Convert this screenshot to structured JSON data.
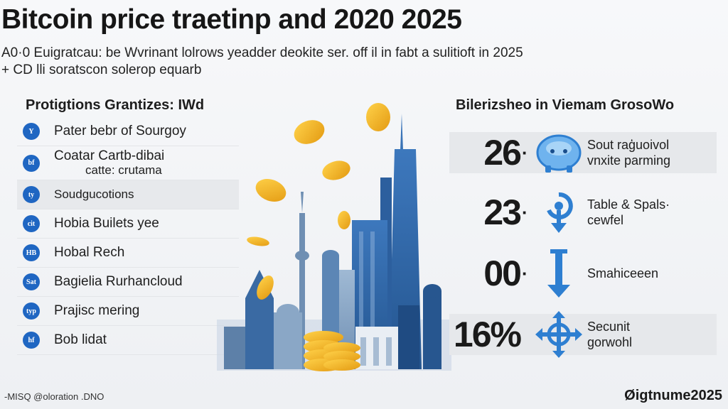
{
  "header": {
    "title": "Bitcoin price traetinp and 2020 2025",
    "subtitle_line1": "A0·0 Euigratcau: be Wvrinant lolrows yeadder deokite ser. off il in fabt a sulitioft in 2025",
    "subtitle_line2": "+ CD lli soratscon solerop equarb"
  },
  "left_panel": {
    "heading": "Protigtions Grantizes: IWd",
    "items": [
      {
        "badge": "Y",
        "label": "Pater bebr of Sourgoy",
        "label2": ""
      },
      {
        "badge": "bf",
        "label": "Coatar Cartb-dibai",
        "label2": "catte: crutama"
      },
      {
        "badge": "ty",
        "label": "Soudgucotions",
        "label2": ""
      },
      {
        "badge": "cit",
        "label": "Hobia Builets yee",
        "label2": ""
      },
      {
        "badge": "HB",
        "label": "Hobal Rech",
        "label2": ""
      },
      {
        "badge": "Sat",
        "label": "Bagielia Rurhancloud",
        "label2": ""
      },
      {
        "badge": "typ",
        "label": "Prajisc mering",
        "label2": ""
      },
      {
        "badge": "hf",
        "label": "Bob lidat",
        "label2": ""
      }
    ]
  },
  "right_panel": {
    "heading": "Bilerizsheo in Viemam GrosoWo",
    "stats": [
      {
        "value": "26",
        "label": "Sout raģuoivol\nvnxite parming",
        "icon": "piggy-bank-icon"
      },
      {
        "value": "23",
        "label": "Table & Spals·\ncewfel",
        "icon": "refresh-arrow-icon"
      },
      {
        "value": "00",
        "label": "Smahiceeen",
        "icon": "down-arrow-icon"
      },
      {
        "value": "16%",
        "label": "Secunit\ngorwohl",
        "icon": "move-arrows-icon"
      }
    ]
  },
  "footer": {
    "left": "-MISQ @oloration .DNO",
    "right": "Øigtnume2025"
  },
  "colors": {
    "accent_blue": "#1f66c2",
    "coin_gold": "#f2b51f",
    "building_blue": "#2f66a8"
  }
}
